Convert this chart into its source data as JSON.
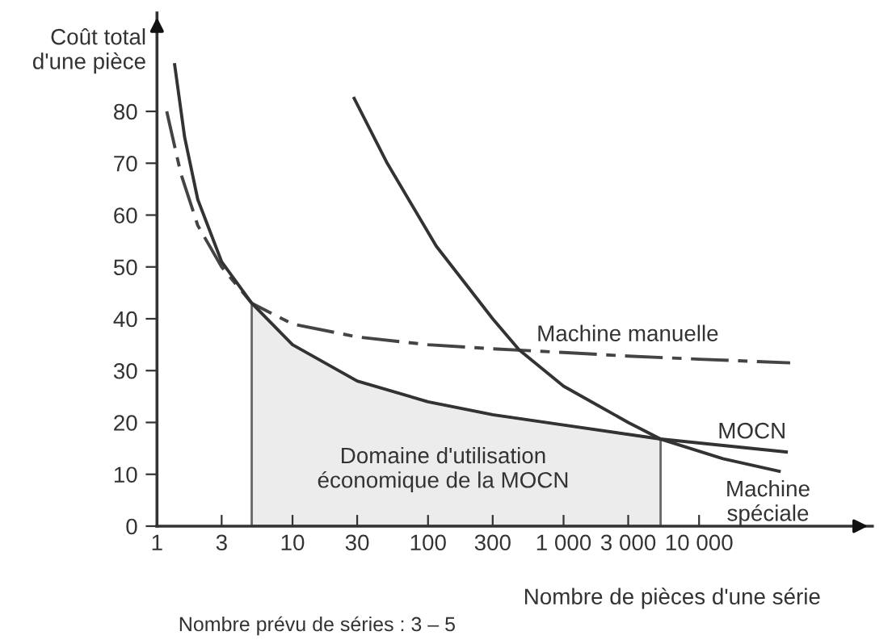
{
  "chart_data": {
    "type": "line",
    "ylabel": "Coût total\nd'une pièce",
    "xlabel": "Nombre de pièces d'une série",
    "log": "x",
    "xlim": [
      1,
      190000
    ],
    "xticks": [
      1,
      3,
      10,
      30,
      100,
      300,
      {
        "value": 1000,
        "label": "1 000"
      },
      {
        "value": 3000,
        "label": "3 000"
      },
      {
        "value": 10000,
        "label": "10 000"
      }
    ],
    "ylim": [
      0,
      99
    ],
    "yticks": [
      0,
      10,
      20,
      30,
      40,
      50,
      60,
      70,
      80
    ],
    "grid": false,
    "legend": false,
    "marker": "none",
    "series": [
      {
        "name": "Machine manuelle",
        "color": "#444444",
        "line_style": "dashdot",
        "x": [
          1.18,
          1.5,
          2,
          3,
          5,
          10,
          30,
          100,
          300,
          1000,
          3000,
          10000,
          47000
        ],
        "values": [
          80,
          68,
          58,
          50,
          43,
          39,
          36.5,
          35,
          34.2,
          33.5,
          32.8,
          32.2,
          31.5
        ]
      },
      {
        "name": "MOCN",
        "color": "#333333",
        "line_style": "solid",
        "x": [
          1.35,
          1.6,
          2,
          3,
          5,
          10,
          30,
          100,
          300,
          1000,
          5200,
          44000
        ],
        "values": [
          89,
          75,
          63,
          51,
          43,
          35,
          28,
          24,
          21.5,
          19.5,
          16.8,
          14.3
        ]
      },
      {
        "name": "Machine\nspéciale",
        "color": "#333333",
        "line_style": "solid",
        "x": [
          28.5,
          50,
          115,
          300,
          470,
          1000,
          3000,
          5200,
          15000,
          39000
        ],
        "values": [
          82.5,
          70,
          54,
          40,
          34,
          27,
          20,
          16.8,
          13,
          10.6
        ]
      },
      {
        "type": "area",
        "color": "#ececec",
        "x": [
          5,
          10,
          30,
          100,
          300,
          1000,
          5200
        ],
        "values": [
          43,
          35,
          28,
          24,
          21.5,
          19.5,
          16.8
        ]
      }
    ],
    "annotations": [
      "Domaine d'utilisation\néconomique de la MOCN",
      "Nombre prévu de séries : 3 – 5"
    ]
  }
}
